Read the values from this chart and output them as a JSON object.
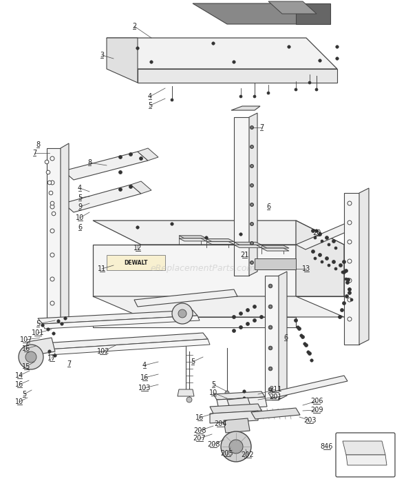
{
  "bg_color": "#ffffff",
  "line_color": "#444444",
  "label_color": "#222222",
  "watermark": "eReplacementParts.com",
  "fig_width": 5.9,
  "fig_height": 7.11,
  "dpi": 100
}
